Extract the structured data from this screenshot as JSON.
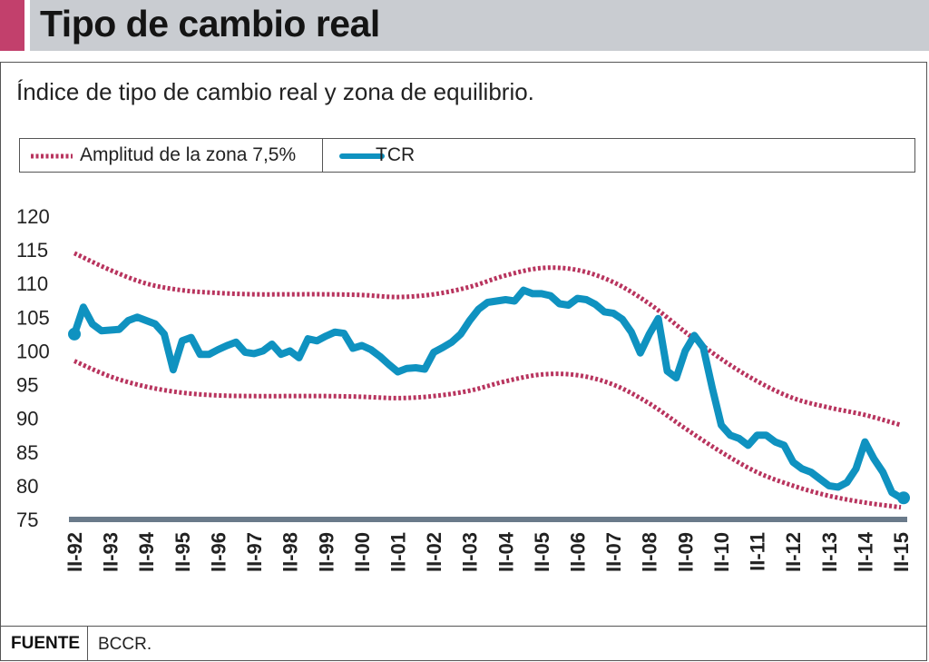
{
  "header": {
    "title": "Tipo de cambio real"
  },
  "subtitle": "Índice de tipo de cambio real y zona de equilibrio.",
  "legend": {
    "band_label": "Amplitud de la zona 7,5%",
    "line_label": "TCR"
  },
  "footer": {
    "label": "FUENTE",
    "source": "BCCR."
  },
  "colors": {
    "accent": "#c2406c",
    "header_bg": "#c9ccd1",
    "tcr": "#0f92c0",
    "band": "#b8345e",
    "baseline": "#6a7a8a"
  },
  "chart_data": {
    "type": "line",
    "title": "",
    "xlabel": "",
    "ylabel": "",
    "ylim": [
      75,
      120
    ],
    "yticks": [
      75,
      80,
      85,
      90,
      95,
      100,
      105,
      110,
      115,
      120
    ],
    "categories": [
      "II-92",
      "II-93",
      "II-94",
      "II-95",
      "II-96",
      "II-97",
      "II-98",
      "II-99",
      "II-00",
      "II-01",
      "II-02",
      "II-03",
      "II-04",
      "II-05",
      "II-06",
      "II-07",
      "II-08",
      "II-09",
      "II-10",
      "II-11",
      "II-12",
      "II-13",
      "II-14",
      "II-15"
    ],
    "x_range": [
      1992.5,
      2015.5
    ],
    "series": [
      {
        "name": "TCR",
        "style": "solid",
        "x": [
          1992.5,
          1992.75,
          1993.0,
          1993.25,
          1993.75,
          1994.0,
          1994.25,
          1994.75,
          1995.0,
          1995.25,
          1995.5,
          1995.75,
          1996.0,
          1996.25,
          1996.5,
          1996.75,
          1997.0,
          1997.25,
          1997.5,
          1997.75,
          1998.0,
          1998.25,
          1998.5,
          1998.75,
          1999.0,
          1999.25,
          1999.5,
          1999.75,
          2000.0,
          2000.25,
          2000.5,
          2000.75,
          2001.0,
          2001.25,
          2001.5,
          2001.75,
          2002.0,
          2002.25,
          2002.5,
          2002.75,
          2003.0,
          2003.25,
          2003.5,
          2003.75,
          2004.0,
          2004.25,
          2004.5,
          2004.75,
          2005.0,
          2005.25,
          2005.5,
          2005.75,
          2006.0,
          2006.25,
          2006.5,
          2006.75,
          2007.0,
          2007.25,
          2007.5,
          2007.75,
          2008.0,
          2008.25,
          2008.5,
          2008.75,
          2009.0,
          2009.25,
          2009.5,
          2009.75,
          2010.0,
          2010.25,
          2010.5,
          2010.75,
          2011.0,
          2011.25,
          2011.5,
          2011.75,
          2012.0,
          2012.25,
          2012.5,
          2012.75,
          2013.0,
          2013.25,
          2013.5,
          2013.75,
          2014.0,
          2014.25,
          2014.5,
          2014.75,
          2015.0,
          2015.25,
          2015.5
        ],
        "y": [
          102.5,
          106.5,
          104.0,
          103.0,
          103.2,
          104.5,
          105.0,
          104.0,
          102.5,
          97.2,
          101.5,
          102.0,
          99.5,
          99.5,
          100.2,
          100.8,
          101.3,
          99.8,
          99.6,
          100.0,
          101.0,
          99.5,
          100.0,
          99.0,
          101.8,
          101.5,
          102.2,
          102.8,
          102.6,
          100.4,
          100.8,
          100.2,
          99.2,
          98.0,
          96.9,
          97.4,
          97.5,
          97.3,
          99.8,
          100.5,
          101.3,
          102.5,
          104.5,
          106.2,
          107.2,
          107.4,
          107.6,
          107.4,
          109.0,
          108.5,
          108.5,
          108.2,
          107.0,
          106.8,
          107.8,
          107.6,
          106.9,
          105.8,
          105.6,
          104.7,
          102.8,
          99.7,
          102.5,
          104.8,
          97.0,
          96.0,
          100.0,
          102.3,
          100.5,
          94.5,
          89.0,
          87.5,
          87.0,
          86.0,
          87.5,
          87.5,
          86.5,
          86.0,
          83.5,
          82.5,
          82.0,
          81.0,
          80.0,
          79.8,
          80.5,
          82.5,
          86.5,
          84.0,
          82.0,
          79.0,
          78.2
        ]
      },
      {
        "name": "Amplitud de la zona 7,5%",
        "style": "dotted",
        "bound": "upper",
        "x": [
          1992.5,
          1993.5,
          1994.5,
          1995.5,
          1996.5,
          1997.5,
          1998.5,
          1999.5,
          2000.5,
          2001.5,
          2002.5,
          2003.5,
          2004.5,
          2005.5,
          2006.5,
          2007.5,
          2008.5,
          2009.5,
          2010.5,
          2011.5,
          2012.5,
          2013.5,
          2014.5,
          2015.5
        ],
        "y": [
          114.5,
          112.0,
          110.0,
          109.0,
          108.6,
          108.4,
          108.4,
          108.4,
          108.3,
          108.0,
          108.4,
          109.5,
          111.2,
          112.3,
          112.0,
          110.2,
          107.0,
          102.8,
          98.8,
          95.5,
          93.0,
          91.6,
          90.5,
          89.0
        ]
      },
      {
        "name": "Amplitud de la zona 7,5%",
        "style": "dotted",
        "bound": "lower",
        "x": [
          1992.5,
          1993.5,
          1994.5,
          1995.5,
          1996.5,
          1997.5,
          1998.5,
          1999.5,
          2000.5,
          2001.5,
          2002.5,
          2003.5,
          2004.5,
          2005.5,
          2006.5,
          2007.5,
          2008.5,
          2009.5,
          2010.5,
          2011.5,
          2012.5,
          2013.5,
          2014.5,
          2015.5
        ],
        "y": [
          98.5,
          96.2,
          94.7,
          93.8,
          93.4,
          93.3,
          93.3,
          93.3,
          93.2,
          93.0,
          93.3,
          94.1,
          95.5,
          96.5,
          96.4,
          95.0,
          92.2,
          88.5,
          85.0,
          82.0,
          80.0,
          78.5,
          77.5,
          76.8
        ]
      }
    ]
  }
}
